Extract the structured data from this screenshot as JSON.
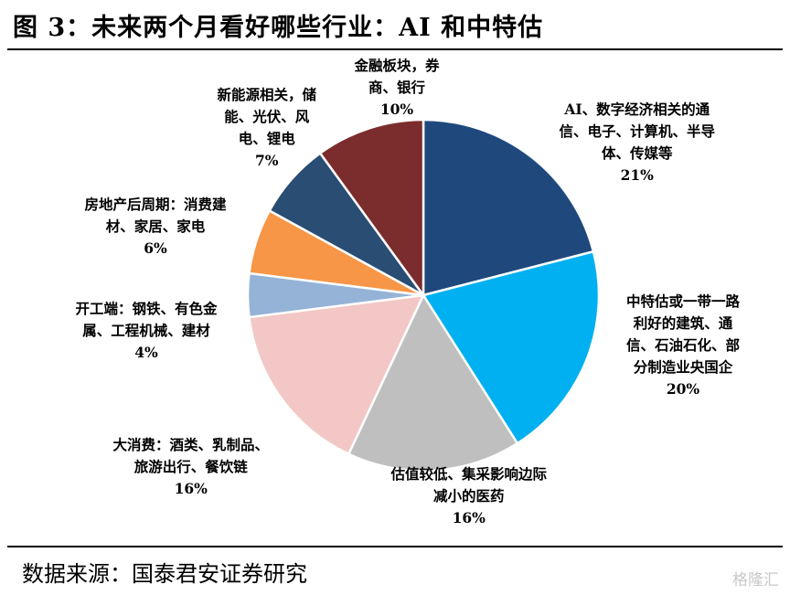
{
  "title": "图 3：未来两个月看好哪些行业：AI 和中特估",
  "source": "数据来源：国泰君安证券研究",
  "watermark": "格隆汇",
  "chart_data": {
    "type": "pie",
    "title": "",
    "slices": [
      {
        "label": "AI、数字经济相关的通\n信、电子、计算机、半导\n体、传媒等",
        "value": 21,
        "value_label": "21%",
        "color": "#1f497d"
      },
      {
        "label": "中特估或一带一路\n利好的建筑、通\n信、石油石化、部\n分制造业央国企",
        "value": 20,
        "value_label": "20%",
        "color": "#00b0f0"
      },
      {
        "label": "估值较低、集采影响边际\n减小的医药",
        "value": 16,
        "value_label": "16%",
        "color": "#bfbfbf"
      },
      {
        "label": "大消费：酒类、乳制品、\n旅游出行、餐饮链",
        "value": 16,
        "value_label": "16%",
        "color": "#f2c7c5"
      },
      {
        "label": "开工端：钢铁、有色金\n属、工程机械、建材",
        "value": 4,
        "value_label": "4%",
        "color": "#95b3d7"
      },
      {
        "label": "房地产后周期：消费建\n材、家居、家电",
        "value": 6,
        "value_label": "6%",
        "color": "#f79646"
      },
      {
        "label": "新能源相关，储\n能、光伏、风\n电、锂电",
        "value": 7,
        "value_label": "7%",
        "color": "#2a4d73"
      },
      {
        "label": "金融板块，券\n商、银行",
        "value": 10,
        "value_label": "10%",
        "color": "#7b2c2c"
      }
    ]
  }
}
